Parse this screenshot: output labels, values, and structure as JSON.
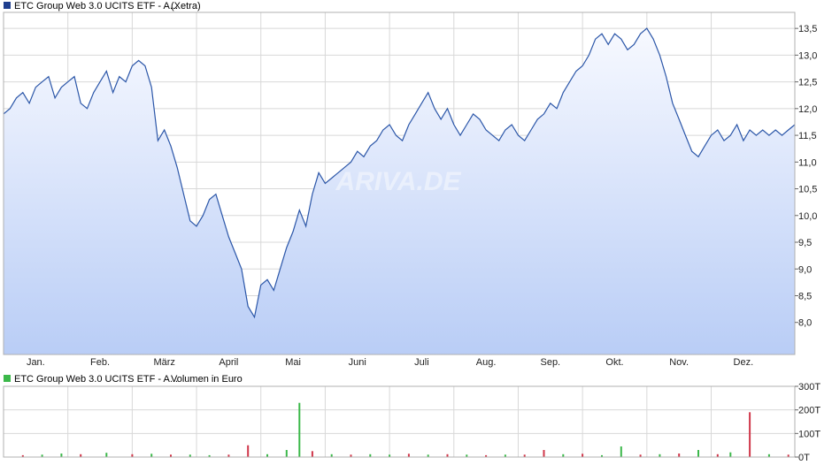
{
  "colors": {
    "price_line": "#2b56a8",
    "price_fill_top": "#f7f9ff",
    "price_fill_bottom": "#b9cdf6",
    "legend_price": "#1f3f8f",
    "legend_volume": "#3bb84a",
    "volume_up": "#3bb84a",
    "volume_down": "#d0374a",
    "grid": "#d8d8d8",
    "frame": "#b0b0b0"
  },
  "chart_data": [
    {
      "type": "line",
      "title": "",
      "legend": {
        "text": "ETC Group Web 3.0 UCITS ETF - A...",
        "suffix": "(Xetra)",
        "position": "top-left"
      },
      "watermark": "ARIVA.DE",
      "xlabel": "",
      "ylabel": "",
      "x_tick_labels": [
        "Jan.",
        "Feb.",
        "März",
        "April",
        "Mai",
        "Juni",
        "Juli",
        "Aug.",
        "Sep.",
        "Okt.",
        "Nov.",
        "Dez."
      ],
      "y_ticks": [
        8.0,
        8.5,
        9.0,
        9.5,
        10.0,
        10.5,
        11.0,
        11.5,
        12.0,
        12.5,
        13.0,
        13.5
      ],
      "y_tick_labels": [
        "8,0",
        "8,5",
        "9,0",
        "9,5",
        "10,0",
        "10,5",
        "11,0",
        "11,5",
        "12,0",
        "12,5",
        "13,0",
        "13,5"
      ],
      "ylim": [
        7.4,
        13.8
      ],
      "xlim": [
        0,
        12.3
      ],
      "grid": true,
      "y_axis_side": "right",
      "x_unit": "month index (0 = start of Jan.)",
      "series": [
        {
          "x": [
            0.0,
            0.1,
            0.2,
            0.3,
            0.4,
            0.5,
            0.6,
            0.7,
            0.8,
            0.9,
            1.0,
            1.1,
            1.2,
            1.3,
            1.4,
            1.5,
            1.6,
            1.7,
            1.8,
            1.9,
            2.0,
            2.1,
            2.2,
            2.3,
            2.4,
            2.5,
            2.6,
            2.7,
            2.8,
            2.9,
            3.0,
            3.1,
            3.2,
            3.3,
            3.4,
            3.5,
            3.6,
            3.7,
            3.8,
            3.9,
            4.0,
            4.1,
            4.2,
            4.3,
            4.4,
            4.5,
            4.6,
            4.7,
            4.8,
            4.9,
            5.0,
            5.1,
            5.2,
            5.3,
            5.4,
            5.5,
            5.6,
            5.7,
            5.8,
            5.9,
            6.0,
            6.1,
            6.2,
            6.3,
            6.4,
            6.5,
            6.6,
            6.7,
            6.8,
            6.9,
            7.0,
            7.1,
            7.2,
            7.3,
            7.4,
            7.5,
            7.6,
            7.7,
            7.8,
            7.9,
            8.0,
            8.1,
            8.2,
            8.3,
            8.4,
            8.5,
            8.6,
            8.7,
            8.8,
            8.9,
            9.0,
            9.1,
            9.2,
            9.3,
            9.4,
            9.5,
            9.6,
            9.7,
            9.8,
            9.9,
            10.0,
            10.1,
            10.2,
            10.3,
            10.4,
            10.5,
            10.6,
            10.7,
            10.8,
            10.9,
            11.0,
            11.1,
            11.2,
            11.3,
            11.4,
            11.5,
            11.6,
            11.7,
            11.8,
            11.9,
            12.0,
            12.1,
            12.2,
            12.3
          ],
          "y": [
            11.9,
            12.0,
            12.2,
            12.3,
            12.1,
            12.4,
            12.5,
            12.6,
            12.2,
            12.4,
            12.5,
            12.6,
            12.1,
            12.0,
            12.3,
            12.5,
            12.7,
            12.3,
            12.6,
            12.5,
            12.8,
            12.9,
            12.8,
            12.4,
            11.4,
            11.6,
            11.3,
            10.9,
            10.4,
            9.9,
            9.8,
            10.0,
            10.3,
            10.4,
            10.0,
            9.6,
            9.3,
            9.0,
            8.3,
            8.1,
            8.7,
            8.8,
            8.6,
            9.0,
            9.4,
            9.7,
            10.1,
            9.8,
            10.4,
            10.8,
            10.6,
            10.7,
            10.8,
            10.9,
            11.0,
            11.2,
            11.1,
            11.3,
            11.4,
            11.6,
            11.7,
            11.5,
            11.4,
            11.7,
            11.9,
            12.1,
            12.3,
            12.0,
            11.8,
            12.0,
            11.7,
            11.5,
            11.7,
            11.9,
            11.8,
            11.6,
            11.5,
            11.4,
            11.6,
            11.7,
            11.5,
            11.4,
            11.6,
            11.8,
            11.9,
            12.1,
            12.0,
            12.3,
            12.5,
            12.7,
            12.8,
            13.0,
            13.3,
            13.4,
            13.2,
            13.4,
            13.3,
            13.1,
            13.2,
            13.4,
            13.5,
            13.3,
            13.0,
            12.6,
            12.1,
            11.8,
            11.5,
            11.2,
            11.1,
            11.3,
            11.5,
            11.6,
            11.4,
            11.5,
            11.7,
            11.4,
            11.6,
            11.5,
            11.6,
            11.5,
            11.6,
            11.5,
            11.6,
            11.7
          ]
        }
      ]
    },
    {
      "type": "bar",
      "title": "",
      "legend": {
        "text": "ETC Group Web 3.0 UCITS ETF - A...",
        "suffix": "Volumen in Euro",
        "position": "top-left"
      },
      "y_ticks": [
        0,
        100,
        200,
        300
      ],
      "y_tick_labels": [
        "0T",
        "100T",
        "200T",
        "300T"
      ],
      "ylim": [
        0,
        300
      ],
      "y_unit": "T (thousand Euro)",
      "grid": true,
      "y_axis_side": "right",
      "x_unit": "month index (0 = start of Jan.)",
      "bars": {
        "x": [
          0.3,
          0.6,
          0.9,
          1.2,
          1.6,
          2.0,
          2.3,
          2.6,
          2.9,
          3.2,
          3.5,
          3.8,
          4.1,
          4.4,
          4.6,
          4.8,
          5.1,
          5.4,
          5.7,
          6.0,
          6.3,
          6.6,
          6.9,
          7.2,
          7.5,
          7.8,
          8.1,
          8.4,
          8.7,
          9.0,
          9.3,
          9.6,
          9.9,
          10.2,
          10.5,
          10.8,
          11.1,
          11.3,
          11.6,
          11.9,
          12.2
        ],
        "values": [
          8,
          10,
          15,
          12,
          18,
          12,
          14,
          10,
          10,
          8,
          10,
          50,
          12,
          30,
          230,
          25,
          12,
          10,
          12,
          10,
          14,
          10,
          12,
          10,
          8,
          10,
          10,
          30,
          12,
          14,
          8,
          45,
          10,
          12,
          15,
          30,
          12,
          20,
          190,
          12,
          10
        ],
        "direction": [
          "down",
          "up",
          "up",
          "down",
          "up",
          "down",
          "up",
          "down",
          "up",
          "up",
          "down",
          "down",
          "up",
          "up",
          "up",
          "down",
          "up",
          "down",
          "up",
          "up",
          "down",
          "up",
          "down",
          "up",
          "down",
          "up",
          "down",
          "down",
          "up",
          "down",
          "up",
          "up",
          "down",
          "up",
          "down",
          "up",
          "down",
          "up",
          "down",
          "up",
          "down"
        ]
      }
    }
  ]
}
